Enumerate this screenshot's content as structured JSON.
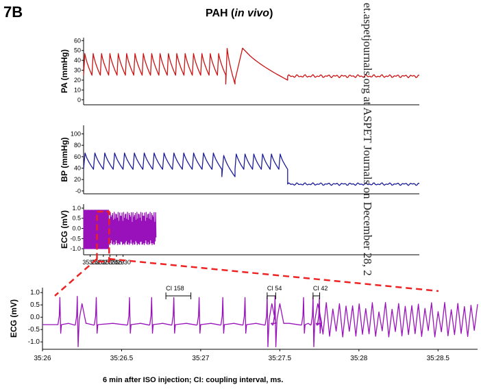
{
  "figure": {
    "panel_label": "7B",
    "title_prefix": "PAH (",
    "title_italic": "in vivo",
    "title_suffix": ")",
    "caption": "6 min after ISO injection; CI: coupling interval, ms.",
    "watermark": "et.aspetjournals.org at ASPET Journals on December 28, 2",
    "colors": {
      "pa": "#cc1111",
      "bp": "#1a1a99",
      "ecg": "#9911bb",
      "box": "#ee2222"
    }
  },
  "chart_data": [
    {
      "type": "line",
      "ylabel": "PA (mmHg)",
      "yticks": [
        0,
        10,
        20,
        30,
        40,
        50,
        60
      ],
      "ylim": [
        -5,
        63
      ],
      "xlim": [
        35.24,
        35.75
      ],
      "series": [
        {
          "color": "#cc1111",
          "segments": [
            {
              "x0": 35.24,
              "x1": 35.456,
              "beats": 17,
              "base": 25,
              "peak": 48
            },
            {
              "x0": 35.456,
              "x1": 35.47,
              "beats": 1,
              "base": 16,
              "peak": 54
            },
            {
              "x0": 35.47,
              "x1": 35.55,
              "beats": 1,
              "base": 20,
              "peak": 54
            },
            {
              "x0": 35.55,
              "x1": 35.75,
              "beats": 0,
              "base": 24,
              "peak": 27
            }
          ]
        }
      ]
    },
    {
      "type": "line",
      "ylabel": "BP (mmHg)",
      "yticks": [
        0,
        20,
        40,
        60,
        80,
        100
      ],
      "ytick_labels": [
        "-0",
        "20",
        "40",
        "60",
        "80",
        "100"
      ],
      "ylim": [
        -5,
        115
      ],
      "xlim": [
        35.24,
        35.75
      ],
      "series": [
        {
          "color": "#1a1a99",
          "segments": [
            {
              "x0": 35.24,
              "x1": 35.45,
              "beats": 14,
              "base": 38,
              "peak": 68
            },
            {
              "x0": 35.45,
              "x1": 35.47,
              "beats": 1,
              "base": 25,
              "peak": 64
            },
            {
              "x0": 35.47,
              "x1": 35.55,
              "beats": 6,
              "base": 38,
              "peak": 66
            },
            {
              "x0": 35.55,
              "x1": 35.75,
              "beats": 0,
              "base": 12,
              "peak": 16
            }
          ]
        }
      ]
    },
    {
      "type": "line",
      "ylabel": "ECG (mV)",
      "yticks": [
        -1.0,
        -0.5,
        0.0,
        0.5,
        1.0
      ],
      "ytick_labels": [
        "-1.0",
        "-0.5",
        "0.0",
        "0.5",
        "1.0"
      ],
      "ylim": [
        -1.3,
        1.2
      ],
      "xlim": [
        35.24,
        35.75
      ],
      "xticks": [
        35.25,
        35.26,
        35.27,
        35.28,
        35.29,
        35.3
      ],
      "xtick_labels": [
        "35:25",
        "35:26",
        "35:27",
        "35:28",
        "35:29",
        "35:30"
      ],
      "highlight_box": [
        35.2603,
        35.2788
      ],
      "series": [
        {
          "color": "#9911bb",
          "segments": [
            {
              "x0": 35.24,
              "x1": 35.2788,
              "beats": 30,
              "base": -0.4,
              "peak": 0.9
            },
            {
              "x0": 35.2788,
              "x1": 35.35,
              "beats": 60,
              "base": -0.3,
              "peak": 0.8
            }
          ]
        }
      ]
    },
    {
      "type": "line",
      "ylabel": "ECG (mV)",
      "yticks": [
        -1.0,
        -0.5,
        0.0,
        0.5,
        1.0
      ],
      "ytick_labels": [
        "-1.0",
        "-0.5",
        "0.0",
        "0.5",
        "1.0"
      ],
      "ylim": [
        -1.3,
        1.2
      ],
      "xlim": [
        35.26,
        35.2875
      ],
      "xticks": [
        35.26,
        35.265,
        35.27,
        35.275,
        35.28,
        35.285
      ],
      "xtick_labels": [
        "35:26",
        "35:26.5",
        "35:27",
        "35:27.5",
        "35:28",
        "35:28.5"
      ],
      "annotations": [
        {
          "label": "CI 158",
          "x0": 35.2678,
          "x1": 35.26938
        },
        {
          "label": "CI 54",
          "x0": 35.2742,
          "x1": 35.27474
        },
        {
          "label": "CI 42",
          "x0": 35.2771,
          "x1": 35.27752
        }
      ],
      "series": [
        {
          "color": "#9911bb",
          "beats": [
            35.2611,
            35.2622,
            35.2634,
            35.2655,
            35.2669,
            35.2683,
            35.2699,
            35.2714,
            35.2728,
            35.2742,
            35.2747,
            35.2765,
            35.2771,
            35.2775
          ],
          "fast_x0": 35.27752,
          "fast_x1": 35.2875
        }
      ]
    }
  ]
}
